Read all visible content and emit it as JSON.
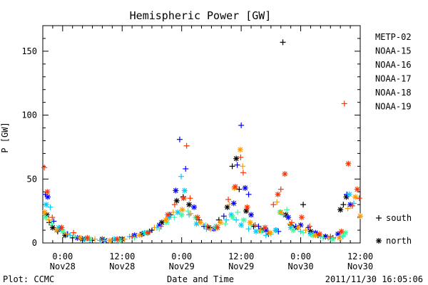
{
  "chart_data": {
    "type": "scatter",
    "title": "Hemispheric Power [GW]",
    "xlabel": "Date and Time",
    "ylabel": "P [GW]",
    "credit": "Plot: CCMC",
    "timestamp": "2011/11/30 16:05:06",
    "x_unit": "hours since 2011-11-27 00:00",
    "xlim": [
      20,
      84
    ],
    "ylim": [
      0,
      170
    ],
    "y_ticks": [
      0,
      50,
      100,
      150
    ],
    "x_ticks": [
      {
        "x": 24,
        "top": "0:00",
        "bottom": "Nov28"
      },
      {
        "x": 36,
        "top": "12:00",
        "bottom": "Nov28"
      },
      {
        "x": 48,
        "top": "0:00",
        "bottom": "Nov29"
      },
      {
        "x": 60,
        "top": "12:00",
        "bottom": "Nov29"
      },
      {
        "x": 72,
        "top": "0:00",
        "bottom": "Nov30"
      },
      {
        "x": 84,
        "top": "12:00",
        "bottom": "Nov30"
      }
    ],
    "marker_legend": [
      {
        "symbol": "+",
        "label": "south"
      },
      {
        "symbol": "*",
        "label": "north"
      }
    ],
    "series": [
      {
        "name": "METP-02",
        "color": "#000000",
        "points": [
          [
            20.8,
            22,
            "n"
          ],
          [
            21.3,
            16,
            "s"
          ],
          [
            22.0,
            12,
            "n"
          ],
          [
            23.0,
            9,
            "s"
          ],
          [
            24.5,
            6,
            "n"
          ],
          [
            26.0,
            4,
            "s"
          ],
          [
            28.0,
            3,
            "n"
          ],
          [
            30.0,
            2,
            "s"
          ],
          [
            32.0,
            3,
            "n"
          ],
          [
            34.0,
            2,
            "s"
          ],
          [
            36.0,
            3,
            "n"
          ],
          [
            38.0,
            5,
            "s"
          ],
          [
            40.0,
            7,
            "n"
          ],
          [
            42.0,
            10,
            "s"
          ],
          [
            44.0,
            16,
            "n"
          ],
          [
            45.5,
            22,
            "s"
          ],
          [
            47.0,
            33,
            "n"
          ],
          [
            48.3,
            36,
            "s"
          ],
          [
            49.5,
            30,
            "n"
          ],
          [
            51.5,
            18,
            "s"
          ],
          [
            53.5,
            12,
            "n"
          ],
          [
            55.5,
            18,
            "s"
          ],
          [
            57.2,
            28,
            "n"
          ],
          [
            58.2,
            60,
            "s"
          ],
          [
            59.0,
            66,
            "n"
          ],
          [
            59.6,
            42,
            "s"
          ],
          [
            61.0,
            25,
            "n"
          ],
          [
            62.5,
            13,
            "s"
          ],
          [
            64.0,
            10,
            "n"
          ],
          [
            65.5,
            7,
            "s"
          ],
          [
            67.0,
            10,
            "n"
          ],
          [
            68.4,
            157,
            "s"
          ],
          [
            69.0,
            22,
            "n"
          ],
          [
            70.0,
            14,
            "s"
          ],
          [
            71.0,
            12,
            "n"
          ],
          [
            72.5,
            30,
            "s"
          ],
          [
            74.0,
            9,
            "n"
          ],
          [
            75.5,
            6,
            "s"
          ],
          [
            77.0,
            5,
            "n"
          ],
          [
            78.5,
            4,
            "s"
          ],
          [
            80.0,
            26,
            "n"
          ],
          [
            80.6,
            30,
            "s"
          ],
          [
            81.2,
            36,
            "n"
          ]
        ]
      },
      {
        "name": "NOAA-15",
        "color": "#0000ff",
        "points": [
          [
            20.5,
            38,
            "s"
          ],
          [
            21.0,
            36,
            "n"
          ],
          [
            22.2,
            17,
            "s"
          ],
          [
            23.5,
            11,
            "n"
          ],
          [
            25.0,
            7,
            "s"
          ],
          [
            27.0,
            4,
            "n"
          ],
          [
            29.5,
            2,
            "s"
          ],
          [
            32.5,
            2,
            "n"
          ],
          [
            35.5,
            3,
            "s"
          ],
          [
            38.5,
            6,
            "n"
          ],
          [
            41.5,
            9,
            "s"
          ],
          [
            43.5,
            14,
            "n"
          ],
          [
            45.8,
            22,
            "s"
          ],
          [
            46.8,
            41,
            "n"
          ],
          [
            47.6,
            81,
            "s"
          ],
          [
            48.8,
            58,
            "s"
          ],
          [
            50.5,
            28,
            "n"
          ],
          [
            52.5,
            13,
            "s"
          ],
          [
            54.5,
            11,
            "n"
          ],
          [
            56.5,
            21,
            "s"
          ],
          [
            58.5,
            31,
            "n"
          ],
          [
            59.2,
            61,
            "s"
          ],
          [
            60.0,
            92,
            "s"
          ],
          [
            60.8,
            43,
            "n"
          ],
          [
            61.5,
            38,
            "s"
          ],
          [
            62.0,
            22,
            "n"
          ],
          [
            63.5,
            13,
            "s"
          ],
          [
            65.0,
            10,
            "n"
          ],
          [
            67.5,
            9,
            "s"
          ],
          [
            69.5,
            20,
            "n"
          ],
          [
            71.0,
            13,
            "s"
          ],
          [
            72.0,
            14,
            "n"
          ],
          [
            73.5,
            12,
            "s"
          ],
          [
            75.0,
            8,
            "n"
          ],
          [
            77.0,
            5,
            "s"
          ],
          [
            79.5,
            7,
            "n"
          ],
          [
            81.3,
            38,
            "s"
          ],
          [
            82.0,
            30,
            "n"
          ]
        ]
      },
      {
        "name": "NOAA-16",
        "color": "#00ccff",
        "points": [
          [
            20.7,
            30,
            "n"
          ],
          [
            21.5,
            28,
            "s"
          ],
          [
            23.2,
            12,
            "n"
          ],
          [
            25.5,
            6,
            "s"
          ],
          [
            28.5,
            3,
            "n"
          ],
          [
            31.5,
            2,
            "s"
          ],
          [
            34.5,
            3,
            "n"
          ],
          [
            37.5,
            5,
            "s"
          ],
          [
            40.5,
            8,
            "n"
          ],
          [
            43.0,
            12,
            "s"
          ],
          [
            45.5,
            20,
            "n"
          ],
          [
            47.2,
            24,
            "n"
          ],
          [
            47.9,
            52,
            "s"
          ],
          [
            48.6,
            41,
            "n"
          ],
          [
            49.5,
            22,
            "s"
          ],
          [
            51.0,
            15,
            "n"
          ],
          [
            53.0,
            11,
            "s"
          ],
          [
            55.0,
            13,
            "n"
          ],
          [
            57.0,
            18,
            "s"
          ],
          [
            58.0,
            22,
            "n"
          ],
          [
            59.0,
            18,
            "s"
          ],
          [
            60.0,
            14,
            "n"
          ],
          [
            61.5,
            11,
            "s"
          ],
          [
            63.0,
            9,
            "n"
          ],
          [
            65.0,
            6,
            "s"
          ],
          [
            67.0,
            10,
            "n"
          ],
          [
            68.5,
            22,
            "s"
          ],
          [
            70.0,
            12,
            "n"
          ],
          [
            72.0,
            9,
            "s"
          ],
          [
            74.0,
            7,
            "n"
          ],
          [
            76.0,
            5,
            "s"
          ],
          [
            78.0,
            4,
            "n"
          ],
          [
            80.5,
            5,
            "s"
          ],
          [
            81.8,
            38,
            "n"
          ],
          [
            82.7,
            31,
            "s"
          ]
        ]
      },
      {
        "name": "NOAA-17",
        "color": "#33ff99",
        "points": [
          [
            20.6,
            20,
            "n"
          ],
          [
            21.8,
            15,
            "s"
          ],
          [
            24.0,
            9,
            "n"
          ],
          [
            26.5,
            5,
            "s"
          ],
          [
            29.5,
            3,
            "n"
          ],
          [
            32.5,
            2,
            "s"
          ],
          [
            35.5,
            2,
            "n"
          ],
          [
            38.5,
            4,
            "s"
          ],
          [
            41.0,
            8,
            "n"
          ],
          [
            43.5,
            11,
            "s"
          ],
          [
            45.0,
            16,
            "n"
          ],
          [
            46.5,
            20,
            "s"
          ],
          [
            48.0,
            22,
            "n"
          ],
          [
            49.3,
            25,
            "s"
          ],
          [
            50.8,
            20,
            "n"
          ],
          [
            52.8,
            14,
            "s"
          ],
          [
            54.8,
            12,
            "n"
          ],
          [
            56.8,
            15,
            "s"
          ],
          [
            58.3,
            20,
            "n"
          ],
          [
            59.3,
            24,
            "s"
          ],
          [
            60.5,
            18,
            "n"
          ],
          [
            62.0,
            14,
            "s"
          ],
          [
            64.0,
            9,
            "n"
          ],
          [
            66.0,
            7,
            "s"
          ],
          [
            67.8,
            24,
            "n"
          ],
          [
            69.2,
            26,
            "s"
          ],
          [
            70.5,
            10,
            "n"
          ],
          [
            72.5,
            8,
            "s"
          ],
          [
            74.5,
            6,
            "n"
          ],
          [
            76.5,
            4,
            "s"
          ],
          [
            78.5,
            3,
            "n"
          ],
          [
            80.5,
            6,
            "s"
          ],
          [
            81.0,
            8,
            "n"
          ]
        ]
      },
      {
        "name": "NOAA-18",
        "color": "#ff9900",
        "points": [
          [
            20.4,
            24,
            "n"
          ],
          [
            21.2,
            18,
            "s"
          ],
          [
            22.8,
            10,
            "n"
          ],
          [
            24.8,
            7,
            "s"
          ],
          [
            27.5,
            4,
            "n"
          ],
          [
            30.5,
            3,
            "s"
          ],
          [
            33.5,
            2,
            "n"
          ],
          [
            36.5,
            3,
            "s"
          ],
          [
            39.5,
            6,
            "n"
          ],
          [
            42.5,
            12,
            "s"
          ],
          [
            44.8,
            18,
            "n"
          ],
          [
            46.3,
            24,
            "s"
          ],
          [
            48.1,
            26,
            "n"
          ],
          [
            49.8,
            23,
            "s"
          ],
          [
            51.8,
            16,
            "n"
          ],
          [
            53.8,
            11,
            "s"
          ],
          [
            55.8,
            16,
            "n"
          ],
          [
            57.6,
            30,
            "s"
          ],
          [
            58.6,
            43,
            "n"
          ],
          [
            59.8,
            73,
            "n"
          ],
          [
            60.3,
            60,
            "s"
          ],
          [
            61.8,
            16,
            "n"
          ],
          [
            63.8,
            10,
            "s"
          ],
          [
            65.8,
            8,
            "n"
          ],
          [
            67.2,
            32,
            "s"
          ],
          [
            68.0,
            24,
            "n"
          ],
          [
            69.8,
            15,
            "s"
          ],
          [
            71.5,
            12,
            "n"
          ],
          [
            73.0,
            10,
            "s"
          ],
          [
            75.0,
            6,
            "n"
          ],
          [
            77.5,
            4,
            "s"
          ],
          [
            79.8,
            4,
            "n"
          ],
          [
            81.5,
            27,
            "s"
          ],
          [
            83.0,
            36,
            "n"
          ],
          [
            84.0,
            21,
            "n"
          ]
        ]
      },
      {
        "name": "NOAA-19",
        "color": "#ff3300",
        "points": [
          [
            20.3,
            59,
            "s"
          ],
          [
            20.9,
            40,
            "n"
          ],
          [
            21.9,
            20,
            "s"
          ],
          [
            23.8,
            12,
            "n"
          ],
          [
            26.2,
            8,
            "s"
          ],
          [
            29.0,
            4,
            "n"
          ],
          [
            32.0,
            3,
            "s"
          ],
          [
            35.0,
            3,
            "n"
          ],
          [
            38.0,
            5,
            "s"
          ],
          [
            41.2,
            8,
            "n"
          ],
          [
            43.8,
            13,
            "s"
          ],
          [
            45.2,
            22,
            "n"
          ],
          [
            46.6,
            30,
            "s"
          ],
          [
            48.4,
            35,
            "n"
          ],
          [
            49.0,
            76,
            "s"
          ],
          [
            49.7,
            35,
            "s"
          ],
          [
            51.2,
            20,
            "n"
          ],
          [
            53.2,
            13,
            "s"
          ],
          [
            55.2,
            12,
            "n"
          ],
          [
            57.4,
            34,
            "s"
          ],
          [
            58.8,
            44,
            "n"
          ],
          [
            59.9,
            67,
            "s"
          ],
          [
            60.4,
            55,
            "s"
          ],
          [
            61.2,
            28,
            "n"
          ],
          [
            62.8,
            14,
            "s"
          ],
          [
            64.8,
            12,
            "n"
          ],
          [
            66.5,
            30,
            "s"
          ],
          [
            67.4,
            38,
            "n"
          ],
          [
            68.0,
            42,
            "s"
          ],
          [
            68.8,
            54,
            "n"
          ],
          [
            70.2,
            16,
            "s"
          ],
          [
            72.2,
            20,
            "n"
          ],
          [
            73.8,
            13,
            "s"
          ],
          [
            75.8,
            7,
            "n"
          ],
          [
            78.0,
            5,
            "s"
          ],
          [
            80.2,
            9,
            "n"
          ],
          [
            80.8,
            109,
            "s"
          ],
          [
            81.6,
            62,
            "n"
          ],
          [
            82.4,
            29,
            "s"
          ],
          [
            83.4,
            42,
            "n"
          ],
          [
            83.8,
            35,
            "s"
          ]
        ]
      }
    ]
  }
}
